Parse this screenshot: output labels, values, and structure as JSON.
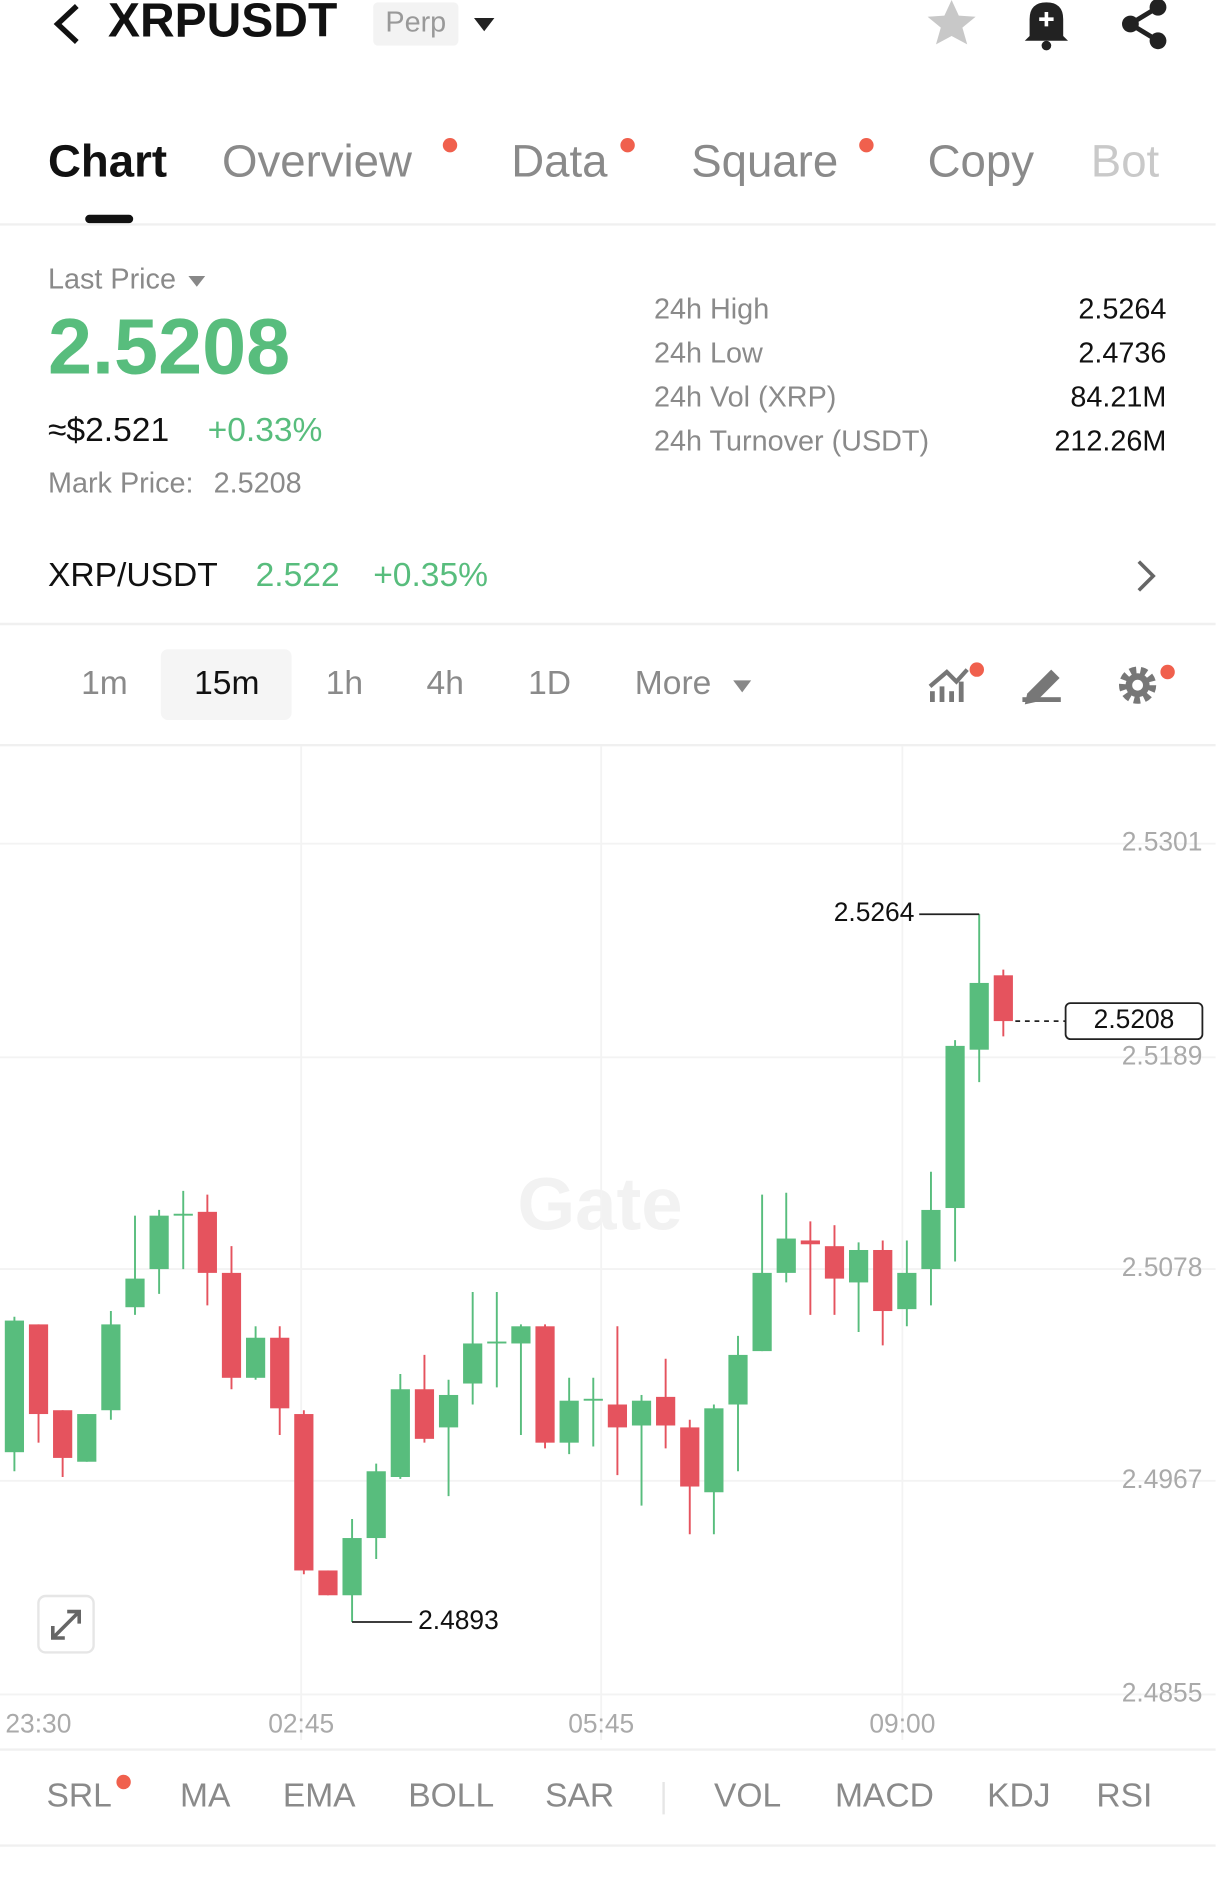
{
  "header": {
    "symbol": "XRPUSDT",
    "badge": "Perp"
  },
  "tabs": [
    "Chart",
    "Overview",
    "Data",
    "Square",
    "Copy",
    "Bot"
  ],
  "price": {
    "label": "Last Price",
    "last": "2.5208",
    "usd": "≈$2.521",
    "change": "+0.33%",
    "mark_label": "Mark Price:",
    "mark": "2.5208"
  },
  "stats": [
    {
      "label": "24h High",
      "value": "2.5264"
    },
    {
      "label": "24h Low",
      "value": "2.4736"
    },
    {
      "label": "24h Vol (XRP)",
      "value": "84.21M"
    },
    {
      "label": "24h Turnover (USDT)",
      "value": "212.26M"
    }
  ],
  "spot": {
    "pair": "XRP/USDT",
    "price": "2.522",
    "change": "+0.35%"
  },
  "intervals": [
    "1m",
    "15m",
    "1h",
    "4h",
    "1D",
    "More"
  ],
  "chart_data": {
    "type": "candlestick",
    "watermark": "Gate",
    "open": [
      2.4982,
      2.5049,
      2.5004,
      2.4977,
      2.5004,
      2.5058,
      2.5078,
      2.5106,
      2.5108,
      2.5076,
      2.5021,
      2.5042,
      2.5002,
      2.492,
      2.4907,
      2.4937,
      2.4969,
      2.5015,
      2.4995,
      2.5018,
      2.5039,
      2.5039,
      2.5048,
      2.4987,
      2.5009,
      2.5007,
      2.4996,
      2.5011,
      2.4995,
      2.4961,
      2.5007,
      2.5035,
      2.5076,
      2.5093,
      2.509,
      2.5071,
      2.5088,
      2.5057,
      2.5078,
      2.511,
      2.5193,
      2.5232
    ],
    "high": [
      2.5053,
      2.5049,
      2.5004,
      2.5002,
      2.5056,
      2.5106,
      2.5109,
      2.5119,
      2.5117,
      2.509,
      2.5048,
      2.5048,
      2.5004,
      2.492,
      2.4947,
      2.4976,
      2.5023,
      2.5033,
      2.502,
      2.5066,
      2.5066,
      2.5049,
      2.5049,
      2.5021,
      2.5021,
      2.5048,
      2.5012,
      2.5031,
      2.4999,
      2.5007,
      2.5043,
      2.5117,
      2.5118,
      2.5103,
      2.5101,
      2.5092,
      2.5093,
      2.5093,
      2.5129,
      2.5198,
      2.5264,
      2.5235
    ],
    "low": [
      2.4972,
      2.4987,
      2.4969,
      2.4977,
      2.4999,
      2.5054,
      2.5065,
      2.5078,
      2.5059,
      2.5015,
      2.502,
      2.4991,
      2.4918,
      2.4907,
      2.4893,
      2.4926,
      2.4968,
      2.4987,
      2.4959,
      2.5007,
      2.5016,
      2.4991,
      2.4984,
      2.4981,
      2.4985,
      2.497,
      2.4954,
      2.4984,
      2.4939,
      2.4939,
      2.4972,
      2.5035,
      2.5071,
      2.5054,
      2.5054,
      2.5045,
      2.5038,
      2.5048,
      2.5059,
      2.5082,
      2.5176,
      2.52
    ],
    "close": [
      2.5051,
      2.5002,
      2.4979,
      2.5002,
      2.5049,
      2.5073,
      2.5106,
      2.5107,
      2.5076,
      2.5021,
      2.5042,
      2.5005,
      2.492,
      2.4907,
      2.4937,
      2.4972,
      2.5015,
      2.4989,
      2.5012,
      2.5039,
      2.504,
      2.5048,
      2.4987,
      2.5009,
      2.501,
      2.4995,
      2.5009,
      2.4996,
      2.4964,
      2.5005,
      2.5033,
      2.5076,
      2.5094,
      2.5091,
      2.5073,
      2.5088,
      2.5056,
      2.5076,
      2.5109,
      2.5195,
      2.5228,
      2.5208
    ],
    "up_color": "#58bd7d",
    "down_color": "#e5535e",
    "ylim": [
      2.485,
      2.5352
    ],
    "yticks": [
      2.5301,
      2.5189,
      2.5078,
      2.4967,
      2.4855
    ],
    "x_labels": [
      "23:30",
      "02:45",
      "05:45",
      "09:00"
    ],
    "grid": true,
    "annotations": {
      "high": 2.5264,
      "low": 2.4893,
      "last": 2.5208
    }
  },
  "indicators": [
    "SRL",
    "MA",
    "EMA",
    "BOLL",
    "SAR",
    "VOL",
    "MACD",
    "KDJ",
    "RSI"
  ]
}
